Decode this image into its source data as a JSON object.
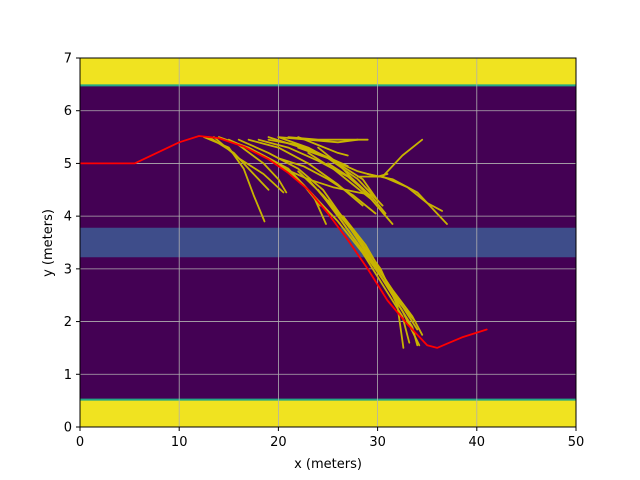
{
  "chart_data": {
    "type": "line",
    "xlabel": "x (meters)",
    "ylabel": "y (meters)",
    "xlim": [
      0,
      50
    ],
    "ylim": [
      0,
      7
    ],
    "x_ticks": [
      "0",
      "10",
      "20",
      "30",
      "40",
      "50"
    ],
    "y_ticks": [
      "0",
      "1",
      "2",
      "3",
      "4",
      "5",
      "6",
      "7"
    ],
    "grid": true,
    "colors": {
      "background": "#440154",
      "boundary": "#f0e320",
      "boundary_edge": "#22a884",
      "center_band": "#3e4d8a",
      "grid": "#b0b0b0",
      "trajectory": "#ff0000",
      "predictions": "#c8b400"
    },
    "regions": [
      {
        "name": "lower boundary",
        "y": [
          0,
          0.52
        ],
        "color": "#f0e320"
      },
      {
        "name": "upper boundary",
        "y": [
          6.48,
          7
        ],
        "color": "#f0e320"
      },
      {
        "name": "center band",
        "y": [
          3.22,
          3.78
        ],
        "color": "#3e4d8a"
      }
    ],
    "series": [
      {
        "role": "trajectory",
        "x": [
          0,
          5.5,
          10,
          12,
          14,
          16.5,
          19,
          21,
          23,
          25,
          27,
          29,
          31,
          33,
          35,
          36,
          37,
          38.5,
          41
        ],
        "y": [
          5.0,
          5.0,
          5.4,
          5.52,
          5.48,
          5.32,
          5.08,
          4.82,
          4.5,
          4.05,
          3.55,
          3.0,
          2.4,
          1.95,
          1.55,
          1.5,
          1.58,
          1.7,
          1.85
        ]
      },
      {
        "role": "prediction",
        "x": [
          12.5,
          15,
          16.5,
          17.5,
          18.6
        ],
        "y": [
          5.5,
          5.3,
          4.9,
          4.4,
          3.9
        ]
      },
      {
        "role": "prediction",
        "x": [
          13,
          15.5,
          17.5,
          19
        ],
        "y": [
          5.5,
          5.2,
          4.8,
          4.5
        ]
      },
      {
        "role": "prediction",
        "x": [
          13.5,
          16,
          18.5,
          20.5
        ],
        "y": [
          5.5,
          5.1,
          4.8,
          4.45
        ]
      },
      {
        "role": "prediction",
        "x": [
          14,
          17,
          20,
          22.5,
          24.2
        ],
        "y": [
          5.5,
          5.3,
          5.0,
          4.6,
          4.2
        ]
      },
      {
        "role": "prediction",
        "x": [
          15,
          18,
          21,
          23.5,
          24.8
        ],
        "y": [
          5.45,
          5.2,
          4.9,
          4.4,
          3.85
        ]
      },
      {
        "role": "prediction",
        "x": [
          16,
          19,
          22,
          24.5,
          26
        ],
        "y": [
          5.45,
          5.2,
          4.9,
          4.5,
          4.1
        ]
      },
      {
        "role": "prediction",
        "x": [
          17,
          20,
          23,
          26,
          28.5
        ],
        "y": [
          5.45,
          5.3,
          5.0,
          4.6,
          4.2
        ]
      },
      {
        "role": "prediction",
        "x": [
          18,
          21,
          24,
          27,
          29.5
        ],
        "y": [
          5.45,
          5.3,
          5.05,
          4.75,
          4.35
        ]
      },
      {
        "role": "prediction",
        "x": [
          19,
          22,
          25,
          28,
          30.5
        ],
        "y": [
          5.45,
          5.35,
          5.1,
          4.7,
          4.2
        ]
      },
      {
        "role": "prediction",
        "x": [
          19,
          21.5,
          24,
          27
        ],
        "y": [
          5.5,
          5.35,
          5.2,
          4.95
        ]
      },
      {
        "role": "prediction",
        "x": [
          20,
          23,
          26,
          29,
          31.5
        ],
        "y": [
          5.5,
          5.3,
          5.0,
          4.4,
          3.85
        ]
      },
      {
        "role": "prediction",
        "x": [
          20,
          23,
          26,
          28
        ],
        "y": [
          5.5,
          5.45,
          5.4,
          5.45
        ]
      },
      {
        "role": "prediction",
        "x": [
          21,
          24,
          27,
          29
        ],
        "y": [
          5.5,
          5.45,
          5.45,
          5.45
        ]
      },
      {
        "role": "prediction",
        "x": [
          22,
          24,
          26,
          27
        ],
        "y": [
          5.5,
          5.35,
          5.2,
          5.15
        ]
      },
      {
        "role": "prediction",
        "x": [
          22,
          25,
          28,
          30,
          31
        ],
        "y": [
          5.3,
          5.1,
          4.85,
          4.75,
          4.8
        ]
      },
      {
        "role": "prediction",
        "x": [
          28,
          30.5,
          33,
          35,
          36.5
        ],
        "y": [
          4.75,
          4.75,
          4.55,
          4.25,
          4.1
        ]
      },
      {
        "role": "prediction",
        "x": [
          29,
          31.5,
          34,
          36,
          37
        ],
        "y": [
          4.8,
          4.7,
          4.45,
          4.05,
          3.85
        ]
      },
      {
        "role": "prediction",
        "x": [
          30.5,
          32.5,
          34.5
        ],
        "y": [
          4.75,
          5.15,
          5.45
        ]
      },
      {
        "role": "prediction",
        "x": [
          20,
          22.5,
          25,
          27.5,
          29.8
        ],
        "y": [
          5.1,
          4.95,
          4.7,
          4.4,
          4.05
        ]
      },
      {
        "role": "prediction",
        "x": [
          23,
          25.5,
          27.5,
          29.5
        ],
        "y": [
          5.2,
          4.9,
          4.6,
          4.3
        ]
      },
      {
        "role": "prediction",
        "x": [
          24,
          26,
          28.5,
          30
        ],
        "y": [
          5.3,
          5.0,
          4.7,
          4.3
        ]
      },
      {
        "role": "prediction",
        "x": [
          25,
          27.5,
          29.5,
          30.8
        ],
        "y": [
          5.0,
          4.7,
          4.35,
          4.05
        ]
      },
      {
        "role": "prediction",
        "x": [
          20,
          23,
          25.5,
          28,
          29.5
        ],
        "y": [
          4.95,
          4.7,
          4.55,
          4.45,
          4.4
        ]
      },
      {
        "role": "prediction",
        "x": [
          16,
          18.5,
          20,
          20.8
        ],
        "y": [
          5.35,
          5.0,
          4.7,
          4.45
        ]
      },
      {
        "role": "prediction",
        "x": [
          21,
          23.5,
          26,
          28.5,
          30.5,
          32.5,
          33.2
        ],
        "y": [
          4.9,
          4.4,
          3.9,
          3.3,
          2.7,
          2.1,
          1.6
        ]
      },
      {
        "role": "prediction",
        "x": [
          22,
          24.5,
          27,
          29.2,
          31.5,
          33.5,
          34
        ],
        "y": [
          4.85,
          4.4,
          3.85,
          3.2,
          2.5,
          1.9,
          1.55
        ]
      },
      {
        "role": "prediction",
        "x": [
          23,
          25.5,
          27.5,
          29.8,
          32,
          33.8
        ],
        "y": [
          4.7,
          4.15,
          3.6,
          3.0,
          2.4,
          2.0
        ]
      },
      {
        "role": "prediction",
        "x": [
          24,
          26.2,
          28.5,
          30.5,
          32.5,
          34.2
        ],
        "y": [
          4.5,
          3.95,
          3.35,
          2.8,
          2.2,
          1.55
        ]
      },
      {
        "role": "prediction",
        "x": [
          25,
          27.3,
          29.5,
          31.5,
          33.5,
          34.5
        ],
        "y": [
          4.3,
          3.75,
          3.15,
          2.6,
          2.1,
          1.75
        ]
      },
      {
        "role": "prediction",
        "x": [
          26,
          28.2,
          30.3,
          32,
          32.6
        ],
        "y": [
          4.1,
          3.55,
          3.0,
          2.3,
          1.5
        ]
      },
      {
        "role": "prediction",
        "x": [
          26.5,
          28.8,
          30.8,
          32.8,
          34
        ],
        "y": [
          4.0,
          3.45,
          2.8,
          2.2,
          1.85
        ]
      }
    ]
  }
}
